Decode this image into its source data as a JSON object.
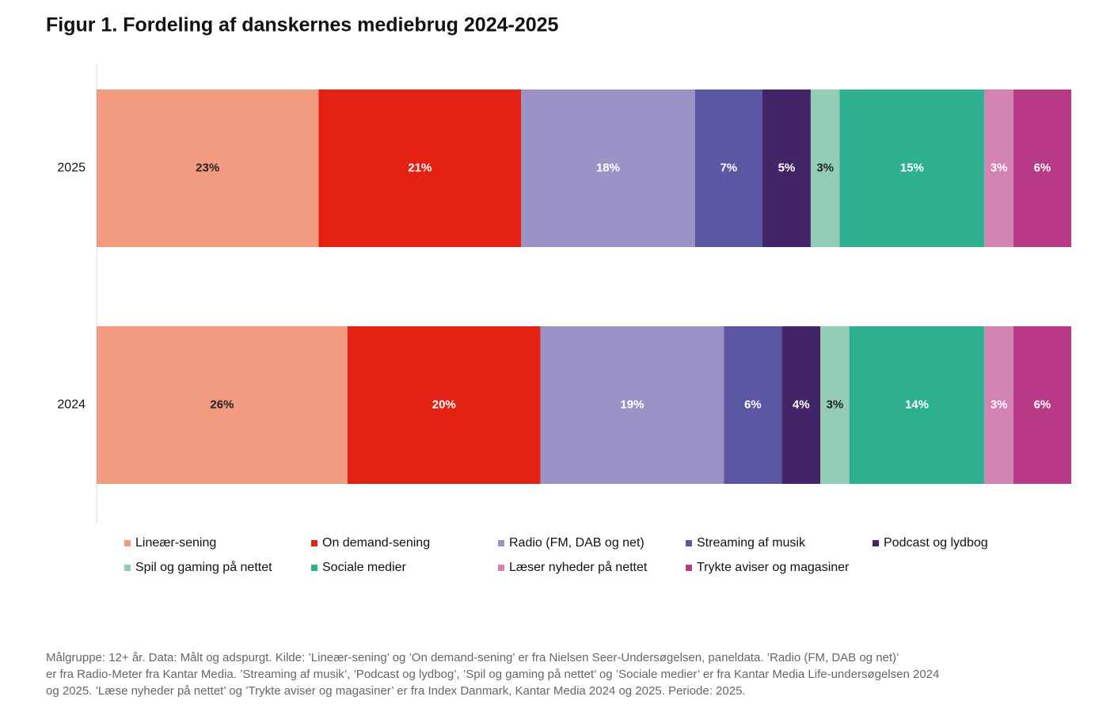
{
  "chart_data": {
    "type": "stacked-bar-horizontal",
    "title": "Figur 1. Fordeling af danskernes mediebrug 2024-2025",
    "categories": [
      "2025",
      "2024"
    ],
    "series": [
      {
        "name": "Lineær-sening",
        "color": "#F29B80",
        "values": [
          23,
          26
        ],
        "value_labels": [
          "23%",
          "26%"
        ]
      },
      {
        "name": "On demand-sening",
        "color": "#E32213",
        "values": [
          21,
          20
        ],
        "value_labels": [
          "21%",
          "20%"
        ]
      },
      {
        "name": "Radio (FM, DAB og net)",
        "color": "#9B92C6",
        "values": [
          18,
          19
        ],
        "value_labels": [
          "18%",
          "19%"
        ]
      },
      {
        "name": "Streaming af musik",
        "color": "#5B57A3",
        "values": [
          7,
          6
        ],
        "value_labels": [
          "7%",
          "6%"
        ]
      },
      {
        "name": "Podcast og lydbog",
        "color": "#432466",
        "values": [
          5,
          4
        ],
        "value_labels": [
          "5%",
          "4%"
        ]
      },
      {
        "name": "Spil og gaming på nettet",
        "color": "#93CDB5",
        "values": [
          3,
          3
        ],
        "value_labels": [
          "3%",
          "3%"
        ]
      },
      {
        "name": "Sociale medier",
        "color": "#2EAF8F",
        "values": [
          15,
          14
        ],
        "value_labels": [
          "15%",
          "14%"
        ]
      },
      {
        "name": "Læser nyheder på nettet",
        "color": "#D283B2",
        "values": [
          3,
          3
        ],
        "value_labels": [
          "3%",
          "3%"
        ]
      },
      {
        "name": "Trykte aviser og magasiner",
        "color": "#B83A86",
        "values": [
          6,
          6
        ],
        "value_labels": [
          "6%",
          "6%"
        ]
      }
    ],
    "footnote": [
      "Målgruppe: 12+ år. Data: Målt og adspurgt. Kilde: ’Lineær-sening’ og ’On demand-sening’ er fra Nielsen Seer-Undersøgelsen, paneldata. ’Radio (FM, DAB og net)’",
      "er fra Radio-Meter fra Kantar Media. ’Streaming af musik’, ’Podcast og lydbog’, ’Spil og gaming på nettet’ og ’Sociale medier’ er fra Kantar Media Life-undersøgelsen 2024",
      "og 2025. ’Læse nyheder på nettet’ og ’Trykte aviser og magasiner’ er fra Index Danmark, Kantar Media 2024 og 2025. Periode: 2025."
    ]
  }
}
